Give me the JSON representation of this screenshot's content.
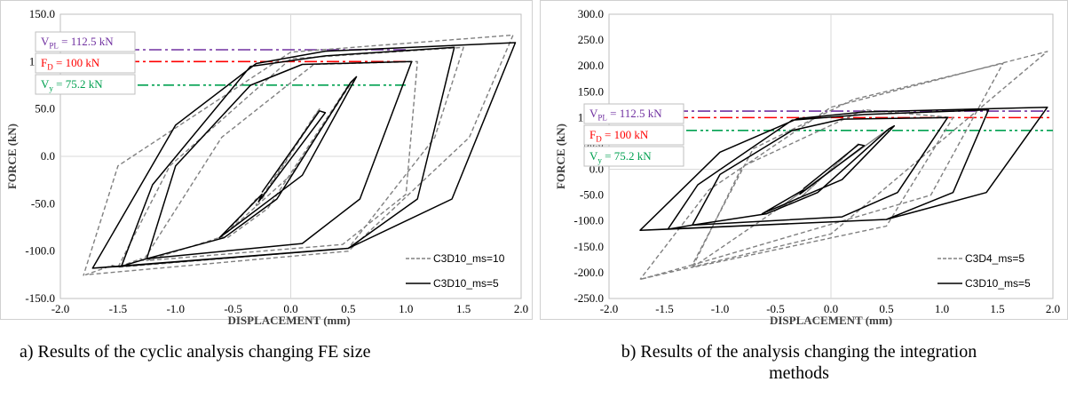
{
  "chart_data": [
    {
      "type": "line",
      "panel": "a",
      "xlabel": "DISPLACEMENT (mm)",
      "ylabel": "FORCE (kN)",
      "xlim": [
        -2.0,
        2.0
      ],
      "ylim": [
        -150,
        150
      ],
      "xticks": [
        "-2.0",
        "-1.5",
        "-1.0",
        "-0.5",
        "0.0",
        "0.5",
        "1.0",
        "1.5",
        "2.0"
      ],
      "yticks": [
        "150.0",
        "100.0",
        "50.0",
        "0.0",
        "-50.0",
        "-100.0",
        "-150.0"
      ],
      "grid": false,
      "legend_position": "bottom-right",
      "reference_lines": [
        {
          "label": "V<sub>PL</sub> = 112.5 kN",
          "value": 112.5,
          "color": "#7030a0",
          "style": "dash-dot"
        },
        {
          "label": "F<sub>D</sub> = 100 kN",
          "value": 100,
          "color": "#ff0000",
          "style": "dash-dot"
        },
        {
          "label": "V<sub>y</sub> = 75.2 kN",
          "value": 75.2,
          "color": "#00a050",
          "style": "dash-dot-dot"
        }
      ],
      "series": [
        {
          "name": "C3D10_ms=10",
          "color": "#808080",
          "dash": true,
          "points": [
            [
              -0.25,
              -45
            ],
            [
              0.25,
              50
            ],
            [
              0.2,
              42
            ],
            [
              -0.3,
              -52
            ],
            [
              -0.3,
              -45
            ],
            [
              -0.55,
              -80
            ],
            [
              0.0,
              -20
            ],
            [
              0.55,
              82
            ],
            [
              0.5,
              75
            ],
            [
              -0.2,
              -55
            ],
            [
              -0.55,
              -86
            ],
            [
              -0.6,
              -85
            ],
            [
              -1.25,
              -110
            ],
            [
              0.45,
              -93
            ],
            [
              1.0,
              -40
            ],
            [
              1.1,
              100
            ],
            [
              0.2,
              97
            ],
            [
              -0.6,
              20
            ],
            [
              -1.28,
              -110
            ],
            [
              -1.3,
              -108
            ],
            [
              -1.5,
              -117
            ],
            [
              0.5,
              -97
            ],
            [
              1.25,
              20
            ],
            [
              1.5,
              115
            ],
            [
              0.0,
              103
            ],
            [
              -1.05,
              -10
            ],
            [
              -1.5,
              -117
            ],
            [
              -1.55,
              -115
            ],
            [
              -1.78,
              -125
            ],
            [
              0.5,
              -100
            ],
            [
              1.55,
              20
            ],
            [
              1.93,
              128
            ],
            [
              0.0,
              110
            ],
            [
              -1.5,
              -10
            ],
            [
              -1.8,
              -126
            ]
          ]
        },
        {
          "name": "C3D10_ms=5",
          "color": "#000000",
          "dash": false,
          "points": [
            [
              -0.25,
              -38
            ],
            [
              0.25,
              48
            ],
            [
              0.3,
              46
            ],
            [
              -0.28,
              -48
            ],
            [
              -0.25,
              -40
            ],
            [
              -0.62,
              -86
            ],
            [
              0.1,
              -20
            ],
            [
              0.57,
              84
            ],
            [
              0.52,
              78
            ],
            [
              -0.12,
              -45
            ],
            [
              -0.58,
              -86
            ],
            [
              -1.25,
              -108
            ],
            [
              0.1,
              -92
            ],
            [
              0.6,
              -45
            ],
            [
              1.05,
              100
            ],
            [
              0.1,
              97
            ],
            [
              -0.35,
              75
            ],
            [
              -1.0,
              -10
            ],
            [
              -1.25,
              -108
            ],
            [
              -1.47,
              -116
            ],
            [
              0.5,
              -97
            ],
            [
              1.1,
              -45
            ],
            [
              1.42,
              115
            ],
            [
              0.3,
              106
            ],
            [
              -0.35,
              95
            ],
            [
              -1.2,
              -30
            ],
            [
              -1.47,
              -116
            ],
            [
              -1.72,
              -118
            ],
            [
              0.5,
              -97
            ],
            [
              1.4,
              -45
            ],
            [
              1.95,
              120
            ],
            [
              0.3,
              111
            ],
            [
              -0.3,
              98
            ],
            [
              -1.0,
              33
            ],
            [
              -1.72,
              -118
            ]
          ]
        }
      ]
    },
    {
      "type": "line",
      "panel": "b",
      "xlabel": "DISPLACEMENT (mm)",
      "ylabel": "FORCE (kN)",
      "xlim": [
        -2.0,
        2.0
      ],
      "ylim": [
        -250,
        300
      ],
      "xticks": [
        "-2.0",
        "-1.5",
        "-1.0",
        "-0.5",
        "0.0",
        "0.5",
        "1.0",
        "1.5",
        "2.0"
      ],
      "yticks": [
        "300.0",
        "250.0",
        "200.0",
        "150.0",
        "100.0",
        "50.0",
        "0.0",
        "-50.0",
        "-100.0",
        "-150.0",
        "-200.0",
        "-250.0"
      ],
      "grid": false,
      "legend_position": "bottom-right",
      "reference_lines": [
        {
          "label": "V<sub>PL</sub> = 112.5 kN",
          "value": 112.5,
          "color": "#7030a0",
          "style": "dash-dot"
        },
        {
          "label": "F<sub>D</sub> = 100 kN",
          "value": 100,
          "color": "#ff0000",
          "style": "dash-dot"
        },
        {
          "label": "V<sub>y</sub> = 75.2 kN",
          "value": 75.2,
          "color": "#00a050",
          "style": "dash-dot-dot"
        }
      ],
      "series": [
        {
          "name": "C3D4_ms=5",
          "color": "#808080",
          "dash": true,
          "points": [
            [
              -0.25,
              -50
            ],
            [
              0.25,
              50
            ],
            [
              -0.25,
              -50
            ],
            [
              -0.5,
              -80
            ],
            [
              0.5,
              75
            ],
            [
              -0.5,
              -80
            ],
            [
              -1.25,
              -190
            ],
            [
              0.5,
              -110
            ],
            [
              1.1,
              100
            ],
            [
              0.3,
              115
            ],
            [
              -0.8,
              5
            ],
            [
              -1.25,
              -190
            ],
            [
              -1.25,
              -185
            ],
            [
              0.9,
              -50
            ],
            [
              1.55,
              205
            ],
            [
              0.2,
              135
            ],
            [
              -0.7,
              40
            ],
            [
              -1.25,
              -185
            ],
            [
              -1.72,
              -213
            ],
            [
              0.0,
              -125
            ],
            [
              1.95,
              228
            ],
            [
              0.0,
              120
            ],
            [
              -1.1,
              -40
            ],
            [
              -1.72,
              -213
            ]
          ]
        },
        {
          "name": "C3D10_ms=5",
          "color": "#000000",
          "dash": false,
          "points": [
            [
              -0.25,
              -38
            ],
            [
              0.25,
              48
            ],
            [
              0.3,
              46
            ],
            [
              -0.28,
              -48
            ],
            [
              -0.25,
              -40
            ],
            [
              -0.62,
              -86
            ],
            [
              0.1,
              -20
            ],
            [
              0.57,
              84
            ],
            [
              0.52,
              78
            ],
            [
              -0.12,
              -45
            ],
            [
              -0.58,
              -86
            ],
            [
              -1.25,
              -108
            ],
            [
              0.1,
              -92
            ],
            [
              0.6,
              -45
            ],
            [
              1.05,
              100
            ],
            [
              0.1,
              97
            ],
            [
              -0.35,
              75
            ],
            [
              -1.0,
              -10
            ],
            [
              -1.25,
              -108
            ],
            [
              -1.47,
              -116
            ],
            [
              0.5,
              -97
            ],
            [
              1.1,
              -45
            ],
            [
              1.42,
              115
            ],
            [
              0.3,
              106
            ],
            [
              -0.35,
              95
            ],
            [
              -1.2,
              -30
            ],
            [
              -1.47,
              -116
            ],
            [
              -1.72,
              -118
            ],
            [
              0.5,
              -97
            ],
            [
              1.4,
              -45
            ],
            [
              1.95,
              120
            ],
            [
              0.3,
              111
            ],
            [
              -0.3,
              98
            ],
            [
              -1.0,
              33
            ],
            [
              -1.72,
              -118
            ]
          ]
        }
      ]
    }
  ],
  "captions": {
    "a": "a)    Results of the cyclic analysis changing FE size",
    "b_line1": "b) Results of the analysis changing the integration",
    "b_line2": "methods"
  }
}
